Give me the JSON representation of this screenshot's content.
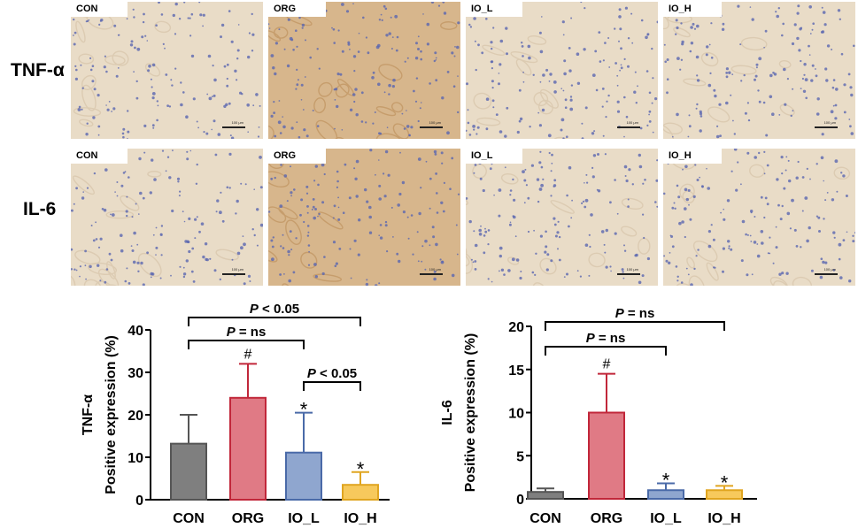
{
  "row_labels": [
    "TNF-α",
    "IL-6"
  ],
  "panels": {
    "row1": [
      "CON",
      "ORG",
      "IO_L",
      "IO_H"
    ],
    "row2": [
      "CON",
      "ORG",
      "IO_L",
      "IO_H"
    ]
  },
  "scale_text": "100 μm",
  "colors": {
    "CON": "#7f7f7f",
    "ORG": "#e07a85",
    "IO_L": "#8fa6cf",
    "IO_H": "#f7c95c",
    "stain_brown": "#d7b68c",
    "stain_light": "#e9dcc7",
    "nuclei_blue": "#5a67b0"
  },
  "chart_data": [
    {
      "type": "bar",
      "categories": [
        "CON",
        "ORG",
        "IO_L",
        "IO_H"
      ],
      "values": [
        13.2,
        24.0,
        11.1,
        3.5
      ],
      "errors": [
        6.8,
        8.0,
        9.4,
        3.0
      ],
      "markers": [
        "",
        "#",
        "*",
        "*"
      ],
      "ylabel_line1": "TNF-α",
      "ylabel_line2": "Positive expression (%)",
      "ylim": [
        0,
        40
      ],
      "yticks": [
        0,
        10,
        20,
        30,
        40
      ],
      "comparisons": [
        {
          "label_p": "P",
          "label_rest": " < 0.05",
          "from": 0,
          "to": 3
        },
        {
          "label_p": "P",
          "label_rest": " = ns",
          "from": 0,
          "to": 2
        },
        {
          "label_p": "P",
          "label_rest": " < 0.05",
          "from": 2,
          "to": 3
        }
      ]
    },
    {
      "type": "bar",
      "categories": [
        "CON",
        "ORG",
        "IO_L",
        "IO_H"
      ],
      "values": [
        0.8,
        10.0,
        1.0,
        1.0
      ],
      "errors": [
        0.4,
        4.5,
        0.8,
        0.5
      ],
      "markers": [
        "",
        "#",
        "*",
        "*"
      ],
      "ylabel_line1": "IL-6",
      "ylabel_line2": "Positive expression (%)",
      "ylim": [
        0,
        20
      ],
      "yticks": [
        0,
        5,
        10,
        15,
        20
      ],
      "comparisons": [
        {
          "label_p": "P",
          "label_rest": " = ns",
          "from": 0,
          "to": 3
        },
        {
          "label_p": "P",
          "label_rest": " = ns",
          "from": 0,
          "to": 2
        }
      ]
    }
  ]
}
